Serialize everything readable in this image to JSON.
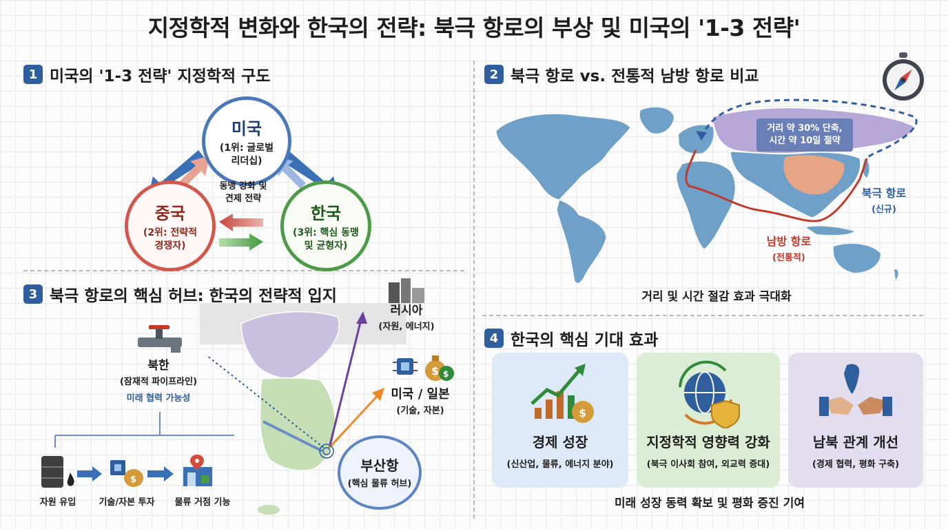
{
  "title": "지정학적 변화와 한국의 전략: 북극 항로의 부상 및 미국의 '1-3 전략'",
  "section1": {
    "num": "1",
    "title": "미국의 '1-3 전략' 지정학적 구도",
    "us": {
      "name": "미국",
      "desc1": "(1위: 글로벌",
      "desc2": "리더십)"
    },
    "china": {
      "name": "중국",
      "desc1": "(2위: 전략적",
      "desc2": "경쟁자)"
    },
    "korea": {
      "name": "한국",
      "desc1": "(3위: 핵심 동맹",
      "desc2": "및 균형자)"
    },
    "center1": "동맹 강화 및",
    "center2": "견제 전략"
  },
  "section2": {
    "num": "2",
    "title": "북극 항로 vs. 전통적 남방 항로 비교",
    "callout1": "거리 약 30% 단축,",
    "callout2": "시간 약 10일 절약",
    "north_route": "북극 항로",
    "north_sub": "(신규)",
    "south_route": "남방 항로",
    "south_sub": "(전통적)",
    "caption": "거리 및 시간 절감 효과 극대화"
  },
  "section3": {
    "num": "3",
    "title": "북극 항로의 핵심 허브: 한국의 전략적 입지",
    "nk_title": "북한",
    "nk_sub": "(잠재적 파이프라인)",
    "nk_future": "미래 협력 가능성",
    "russia": "러시아",
    "russia_sub": "(자원, 에너지)",
    "usjp": "미국 / 일본",
    "usjp_sub": "(기술, 자본)",
    "busan": "부산항",
    "busan_sub": "(핵심 물류 허브)",
    "flow": [
      "자원 유입",
      "기술/자본 투자",
      "물류 거점 기능"
    ]
  },
  "section4": {
    "num": "4",
    "title": "한국의 핵심 기대 효과",
    "cards": [
      {
        "title": "경제 성장",
        "sub": "(신산업, 물류, 에너지 분야)"
      },
      {
        "title": "지정학적 영향력 강화",
        "sub": "(북극 이사회 참여, 외교력 증대)"
      },
      {
        "title": "남북 관계 개선",
        "sub": "(경제 협력, 평화 구축)"
      }
    ],
    "caption": "미래 성장 동력 확보 및 평화 증진 기여"
  },
  "colors": {
    "accent": "#2f5e9e",
    "us": "#4a78b9",
    "china": "#d2584c",
    "korea": "#4d9a48",
    "north_route": "#2f5e9e",
    "south_route": "#c0392b"
  },
  "icons": [
    "compass-icon",
    "factory-icon",
    "chip-icon",
    "money-bag-icon",
    "pipe-valve-icon",
    "oil-barrel-icon",
    "warehouse-icon",
    "growth-chart-icon",
    "globe-shield-icon",
    "handshake-icon"
  ]
}
